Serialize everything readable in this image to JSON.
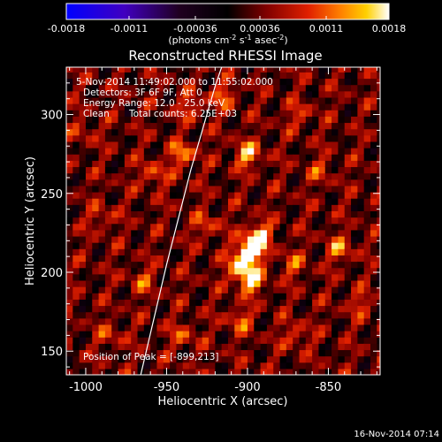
{
  "chart_data": {
    "type": "heatmap",
    "title": "Reconstructed RHESSI Image",
    "xlabel": "Heliocentric X (arcsec)",
    "ylabel": "Heliocentric Y (arcsec)",
    "xlim": [
      -1012,
      -818
    ],
    "ylim": [
      135,
      330
    ],
    "xticks": [
      -1000,
      -950,
      -900,
      -850
    ],
    "yticks": [
      150,
      200,
      250,
      300
    ],
    "colorbar": {
      "ticks": [
        -0.0018,
        -0.0011,
        -0.00036,
        0.00036,
        0.0011,
        0.0018
      ],
      "tick_labels": [
        "-0.0018",
        "-0.0011",
        "-0.00036",
        "0.00036",
        "0.0011",
        "0.0018"
      ],
      "range": [
        -0.0018,
        0.0018
      ],
      "units_line": "(photons cm",
      "units_sup1": "-2",
      "units_mid": " s",
      "units_sup2": "-1",
      "units_end": " asec",
      "units_sup3": "-2",
      "units_close": ")"
    },
    "annotations": {
      "time_range": "5-Nov-2014 11:49:02.000 to 11:55:02.000",
      "detectors": "Detectors: 3F 6F 9F, Att 0",
      "energy": "Energy Range: 12.0 - 25.0 keV",
      "method": "Clean",
      "counts": "Total counts: 6.25E+03",
      "peak": "Position of Peak = [-899,213]"
    },
    "peak": {
      "x": -899,
      "y": 213
    },
    "limb": [
      {
        "x": -966,
        "y": 135
      },
      {
        "x": -950,
        "y": 205
      },
      {
        "x": -935,
        "y": 265
      },
      {
        "x": -920,
        "y": 318
      },
      {
        "x": -916,
        "y": 330
      }
    ],
    "sources": [
      {
        "x": -899,
        "y": 213,
        "amp": 0.0018
      },
      {
        "x": -893,
        "y": 223,
        "amp": 0.0014
      },
      {
        "x": -898,
        "y": 195,
        "amp": 0.0013
      },
      {
        "x": -905,
        "y": 203,
        "amp": 0.001
      },
      {
        "x": -900,
        "y": 275,
        "amp": 0.0011
      },
      {
        "x": -940,
        "y": 275,
        "amp": 0.0009
      },
      {
        "x": -958,
        "y": 262,
        "amp": 0.0007
      },
      {
        "x": -915,
        "y": 312,
        "amp": 0.0007
      },
      {
        "x": -935,
        "y": 305,
        "amp": 0.0006
      },
      {
        "x": -843,
        "y": 215,
        "amp": 0.0008
      },
      {
        "x": -872,
        "y": 205,
        "amp": 0.0006
      },
      {
        "x": -870,
        "y": 160,
        "amp": 0.0006
      },
      {
        "x": -905,
        "y": 170,
        "amp": 0.0007
      },
      {
        "x": -965,
        "y": 195,
        "amp": 0.0006
      },
      {
        "x": -990,
        "y": 235,
        "amp": 0.0005
      },
      {
        "x": -940,
        "y": 160,
        "amp": 0.0006
      },
      {
        "x": -985,
        "y": 160,
        "amp": 0.0005
      },
      {
        "x": -855,
        "y": 265,
        "amp": 0.0005
      },
      {
        "x": -868,
        "y": 300,
        "amp": 0.0005
      },
      {
        "x": -1000,
        "y": 290,
        "amp": 0.0004
      },
      {
        "x": -830,
        "y": 180,
        "amp": 0.0005
      },
      {
        "x": -925,
        "y": 230,
        "amp": 0.0006
      }
    ]
  },
  "footer": {
    "timestamp": "16-Nov-2014 07:14"
  }
}
